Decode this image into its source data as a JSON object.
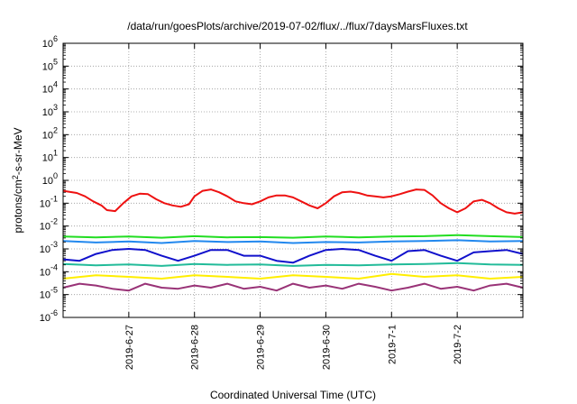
{
  "chart_data": {
    "type": "line",
    "title": "/data/run/goesPlots/archive/2019-07-02/flux/../flux/7daysMarsFluxes.txt",
    "xlabel": "Coordinated Universal Time (UTC)",
    "ylabel": {
      "prefix": "protons/cm",
      "sup": "2",
      "suffix": "-s-sr-MeV"
    },
    "y_scale": "log",
    "ylim": [
      1e-06,
      1000000.0
    ],
    "y_ticks": [
      {
        "exp": -6,
        "base": "10",
        "sup": "-6"
      },
      {
        "exp": -5,
        "base": "10",
        "sup": "-5"
      },
      {
        "exp": -4,
        "base": "10",
        "sup": "-4"
      },
      {
        "exp": -3,
        "base": "10",
        "sup": "-3"
      },
      {
        "exp": -2,
        "base": "10",
        "sup": "-2"
      },
      {
        "exp": -1,
        "base": "10",
        "sup": "-1"
      },
      {
        "exp": 0,
        "base": "10",
        "sup": "0"
      },
      {
        "exp": 1,
        "base": "10",
        "sup": "1"
      },
      {
        "exp": 2,
        "base": "10",
        "sup": "2"
      },
      {
        "exp": 3,
        "base": "10",
        "sup": "3"
      },
      {
        "exp": 4,
        "base": "10",
        "sup": "4"
      },
      {
        "exp": 5,
        "base": "10",
        "sup": "5"
      },
      {
        "exp": 6,
        "base": "10",
        "sup": "6"
      }
    ],
    "xlim": [
      "2019-06-26 00:00",
      "2019-07-03 00:00"
    ],
    "x_ticks": [
      {
        "date": "2019-06-27",
        "label": "2019-6-27"
      },
      {
        "date": "2019-06-28",
        "label": "2019-6-28"
      },
      {
        "date": "2019-06-29",
        "label": "2019-6-29"
      },
      {
        "date": "2019-06-30",
        "label": "2019-6-30"
      },
      {
        "date": "2019-07-01",
        "label": "2019-7-1"
      },
      {
        "date": "2019-07-02",
        "label": "2019-7-2"
      }
    ],
    "grid": true,
    "series": [
      {
        "color": "#ee1111",
        "x": [
          "2019-06-26 00:00",
          "2019-06-26 05:00",
          "2019-06-26 08:00",
          "2019-06-26 11:00",
          "2019-06-26 14:00",
          "2019-06-26 16:00",
          "2019-06-26 19:00",
          "2019-06-26 22:00",
          "2019-06-27 01:00",
          "2019-06-27 04:00",
          "2019-06-27 07:00",
          "2019-06-27 10:00",
          "2019-06-27 13:00",
          "2019-06-27 16:00",
          "2019-06-27 19:00",
          "2019-06-27 22:00",
          "2019-06-28 00:00",
          "2019-06-28 03:00",
          "2019-06-28 06:00",
          "2019-06-28 09:00",
          "2019-06-28 12:00",
          "2019-06-28 15:00",
          "2019-06-28 18:00",
          "2019-06-28 21:00",
          "2019-06-29 00:00",
          "2019-06-29 03:00",
          "2019-06-29 06:00",
          "2019-06-29 09:00",
          "2019-06-29 12:00",
          "2019-06-29 15:00",
          "2019-06-29 18:00",
          "2019-06-29 21:00",
          "2019-06-30 00:00",
          "2019-06-30 03:00",
          "2019-06-30 06:00",
          "2019-06-30 09:00",
          "2019-06-30 12:00",
          "2019-06-30 15:00",
          "2019-06-30 18:00",
          "2019-06-30 21:00",
          "2019-07-01 00:00",
          "2019-07-01 03:00",
          "2019-07-01 06:00",
          "2019-07-01 09:00",
          "2019-07-01 12:00",
          "2019-07-01 15:00",
          "2019-07-01 18:00",
          "2019-07-01 21:00",
          "2019-07-02 00:00",
          "2019-07-02 03:00",
          "2019-07-02 06:00",
          "2019-07-02 09:00",
          "2019-07-02 12:00",
          "2019-07-02 15:00",
          "2019-07-02 18:00",
          "2019-07-02 21:00",
          "2019-07-03 00:00"
        ],
        "y": [
          0.35,
          0.28,
          0.2,
          0.12,
          0.08,
          0.05,
          0.045,
          0.1,
          0.2,
          0.26,
          0.25,
          0.15,
          0.1,
          0.08,
          0.07,
          0.09,
          0.2,
          0.35,
          0.4,
          0.3,
          0.2,
          0.12,
          0.1,
          0.09,
          0.12,
          0.18,
          0.22,
          0.22,
          0.18,
          0.12,
          0.08,
          0.06,
          0.1,
          0.2,
          0.3,
          0.32,
          0.28,
          0.22,
          0.2,
          0.18,
          0.2,
          0.25,
          0.32,
          0.4,
          0.38,
          0.22,
          0.1,
          0.06,
          0.04,
          0.06,
          0.12,
          0.14,
          0.1,
          0.06,
          0.04,
          0.035,
          0.04
        ]
      },
      {
        "color": "#22dd22",
        "x": [
          "2019-06-26 00:00",
          "2019-06-26 12:00",
          "2019-06-27 00:00",
          "2019-06-27 12:00",
          "2019-06-28 00:00",
          "2019-06-28 12:00",
          "2019-06-29 00:00",
          "2019-06-29 12:00",
          "2019-06-30 00:00",
          "2019-06-30 12:00",
          "2019-07-01 00:00",
          "2019-07-01 12:00",
          "2019-07-02 00:00",
          "2019-07-02 12:00",
          "2019-07-03 00:00"
        ],
        "y": [
          0.0035,
          0.0032,
          0.0035,
          0.0031,
          0.0036,
          0.0032,
          0.0033,
          0.0031,
          0.0035,
          0.0032,
          0.0035,
          0.0036,
          0.004,
          0.0036,
          0.0033
        ]
      },
      {
        "color": "#2288ee",
        "x": [
          "2019-06-26 00:00",
          "2019-06-26 12:00",
          "2019-06-27 00:00",
          "2019-06-27 12:00",
          "2019-06-28 00:00",
          "2019-06-28 12:00",
          "2019-06-29 00:00",
          "2019-06-29 12:00",
          "2019-06-30 00:00",
          "2019-06-30 12:00",
          "2019-07-01 00:00",
          "2019-07-01 12:00",
          "2019-07-02 00:00",
          "2019-07-02 12:00",
          "2019-07-03 00:00"
        ],
        "y": [
          0.0022,
          0.0019,
          0.0021,
          0.0018,
          0.0022,
          0.002,
          0.0021,
          0.0018,
          0.002,
          0.0019,
          0.0021,
          0.0022,
          0.0024,
          0.0021,
          0.0022
        ]
      },
      {
        "color": "#1111cc",
        "x": [
          "2019-06-26 00:00",
          "2019-06-26 06:00",
          "2019-06-26 12:00",
          "2019-06-26 18:00",
          "2019-06-27 00:00",
          "2019-06-27 06:00",
          "2019-06-27 12:00",
          "2019-06-27 18:00",
          "2019-06-28 00:00",
          "2019-06-28 06:00",
          "2019-06-28 12:00",
          "2019-06-28 18:00",
          "2019-06-29 00:00",
          "2019-06-29 06:00",
          "2019-06-29 12:00",
          "2019-06-29 18:00",
          "2019-06-30 00:00",
          "2019-06-30 06:00",
          "2019-06-30 12:00",
          "2019-06-30 18:00",
          "2019-07-01 00:00",
          "2019-07-01 06:00",
          "2019-07-01 12:00",
          "2019-07-01 18:00",
          "2019-07-02 00:00",
          "2019-07-02 06:00",
          "2019-07-02 12:00",
          "2019-07-02 18:00",
          "2019-07-03 00:00"
        ],
        "y": [
          0.00035,
          0.0003,
          0.0006,
          0.0009,
          0.001,
          0.0009,
          0.0005,
          0.0003,
          0.0005,
          0.0009,
          0.0009,
          0.0005,
          0.0005,
          0.0003,
          0.00025,
          0.0005,
          0.0009,
          0.001,
          0.0009,
          0.0005,
          0.0003,
          0.0008,
          0.0009,
          0.0005,
          0.0003,
          0.0007,
          0.0008,
          0.0009,
          0.0006
        ]
      },
      {
        "color": "#22bb99",
        "x": [
          "2019-06-26 00:00",
          "2019-06-26 12:00",
          "2019-06-27 00:00",
          "2019-06-27 12:00",
          "2019-06-28 00:00",
          "2019-06-28 12:00",
          "2019-06-29 00:00",
          "2019-06-29 12:00",
          "2019-06-30 00:00",
          "2019-06-30 12:00",
          "2019-07-01 00:00",
          "2019-07-01 12:00",
          "2019-07-02 00:00",
          "2019-07-02 12:00",
          "2019-07-03 00:00"
        ],
        "y": [
          0.00022,
          0.00019,
          0.00021,
          0.00018,
          0.00022,
          0.0002,
          0.00021,
          0.00018,
          0.0002,
          0.00019,
          0.00021,
          0.00022,
          0.00024,
          0.00021,
          0.0002
        ]
      },
      {
        "color": "#ffee00",
        "x": [
          "2019-06-26 00:00",
          "2019-06-26 12:00",
          "2019-06-27 00:00",
          "2019-06-27 12:00",
          "2019-06-28 00:00",
          "2019-06-28 12:00",
          "2019-06-29 00:00",
          "2019-06-29 12:00",
          "2019-06-30 00:00",
          "2019-06-30 12:00",
          "2019-07-01 00:00",
          "2019-07-01 12:00",
          "2019-07-02 00:00",
          "2019-07-02 12:00",
          "2019-07-03 00:00"
        ],
        "y": [
          5e-05,
          7e-05,
          6e-05,
          5e-05,
          7e-05,
          6e-05,
          5e-05,
          7e-05,
          6e-05,
          5e-05,
          8e-05,
          6e-05,
          7e-05,
          5e-05,
          6e-05
        ]
      },
      {
        "color": "#993377",
        "x": [
          "2019-06-26 00:00",
          "2019-06-26 06:00",
          "2019-06-26 12:00",
          "2019-06-26 18:00",
          "2019-06-27 00:00",
          "2019-06-27 06:00",
          "2019-06-27 12:00",
          "2019-06-27 18:00",
          "2019-06-28 00:00",
          "2019-06-28 06:00",
          "2019-06-28 12:00",
          "2019-06-28 18:00",
          "2019-06-29 00:00",
          "2019-06-29 06:00",
          "2019-06-29 12:00",
          "2019-06-29 18:00",
          "2019-06-30 00:00",
          "2019-06-30 06:00",
          "2019-06-30 12:00",
          "2019-06-30 18:00",
          "2019-07-01 00:00",
          "2019-07-01 06:00",
          "2019-07-01 12:00",
          "2019-07-01 18:00",
          "2019-07-02 00:00",
          "2019-07-02 06:00",
          "2019-07-02 12:00",
          "2019-07-02 18:00",
          "2019-07-03 00:00"
        ],
        "y": [
          2e-05,
          3e-05,
          2.5e-05,
          1.8e-05,
          1.5e-05,
          3e-05,
          2e-05,
          1.8e-05,
          2.5e-05,
          2e-05,
          3e-05,
          1.8e-05,
          2.2e-05,
          1.5e-05,
          3e-05,
          2e-05,
          2.5e-05,
          1.8e-05,
          3e-05,
          2.2e-05,
          1.5e-05,
          2e-05,
          3e-05,
          1.8e-05,
          2.2e-05,
          1.5e-05,
          2.5e-05,
          3e-05,
          2e-05
        ]
      }
    ]
  }
}
